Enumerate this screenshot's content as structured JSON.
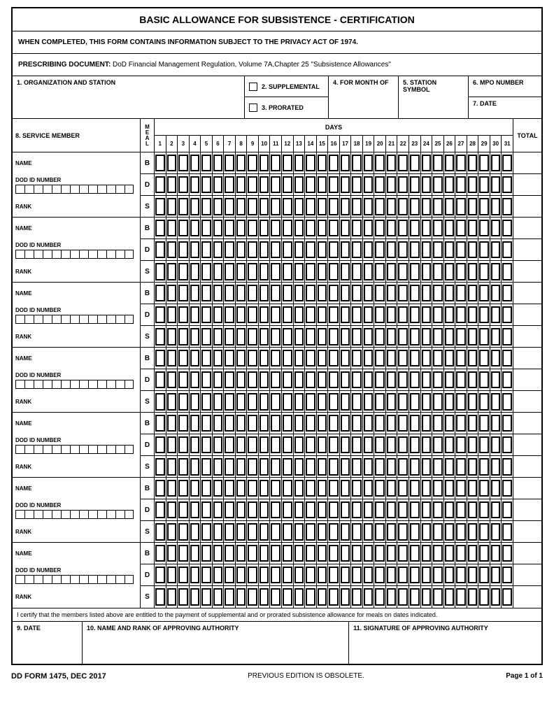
{
  "title": "BASIC ALLOWANCE FOR SUBSISTENCE - CERTIFICATION",
  "privacy": "WHEN COMPLETED, THIS FORM CONTAINS INFORMATION SUBJECT TO THE PRIVACY ACT OF 1974.",
  "prescribing_label": "PRESCRIBING DOCUMENT:",
  "prescribing_text": "DoD Financial Management Regulation, Volume 7A,Chapter 25 \"Subsistence Allowances\"",
  "header": {
    "org": "1. ORGANIZATION AND STATION",
    "supplemental": "2. SUPPLEMENTAL",
    "prorated": "3. PRORATED",
    "month": "4.  FOR MONTH OF",
    "station_symbol": "5. STATION SYMBOL",
    "mpo": "6. MPO NUMBER",
    "date": "7. DATE"
  },
  "grid": {
    "service_member": "8. SERVICE MEMBER",
    "meal_letters": [
      "M",
      "E",
      "A",
      "L"
    ],
    "days_label": "DAYS",
    "total_label": "TOTAL",
    "day_count": 31,
    "member_count": 7,
    "id_box_count": 13,
    "meal_codes": [
      "B",
      "D",
      "S"
    ],
    "row_labels": {
      "name": "NAME",
      "dod_id": "DOD ID NUMBER",
      "rank": "RANK"
    }
  },
  "cert_text": "I certify that the members listed above are entitled to the payment of supplemental and or prorated subsistence allowance for meals on dates indicated.",
  "footer": {
    "date": "9. DATE",
    "name_rank": "10. NAME AND RANK OF APPROVING AUTHORITY",
    "signature": "11. SIGNATURE OF APPROVING AUTHORITY"
  },
  "bottom": {
    "form_id": "DD FORM 1475, DEC 2017",
    "obsolete": "PREVIOUS EDITION IS OBSOLETE.",
    "page": "Page 1 of 1"
  },
  "colors": {
    "border": "#000000",
    "bg": "#ffffff"
  }
}
